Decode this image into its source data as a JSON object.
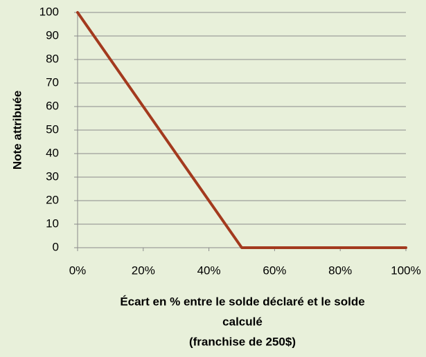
{
  "chart_data": {
    "type": "line",
    "y_label": "Note attribuée",
    "x_label": [
      "Écart en % entre le solde déclaré et le solde",
      "calculé",
      "(franchise de 250$)"
    ],
    "x": [
      0,
      10,
      20,
      30,
      40,
      50,
      60,
      70,
      80,
      90,
      100
    ],
    "series": [
      {
        "name": "Note",
        "color": "#a33a1e",
        "values": [
          100,
          80,
          60,
          40,
          20,
          0,
          0,
          0,
          0,
          0,
          0
        ]
      }
    ],
    "xlim": [
      0,
      100
    ],
    "xticks": [
      {
        "value": 0,
        "label": "0%"
      },
      {
        "value": 20,
        "label": "20%"
      },
      {
        "value": 40,
        "label": "40%"
      },
      {
        "value": 60,
        "label": "60%"
      },
      {
        "value": 80,
        "label": "80%"
      },
      {
        "value": 100,
        "label": "100%"
      }
    ],
    "ylim": [
      0,
      100
    ],
    "yticks": [
      0,
      10,
      20,
      30,
      40,
      50,
      60,
      70,
      80,
      90,
      100
    ],
    "grid": true
  }
}
